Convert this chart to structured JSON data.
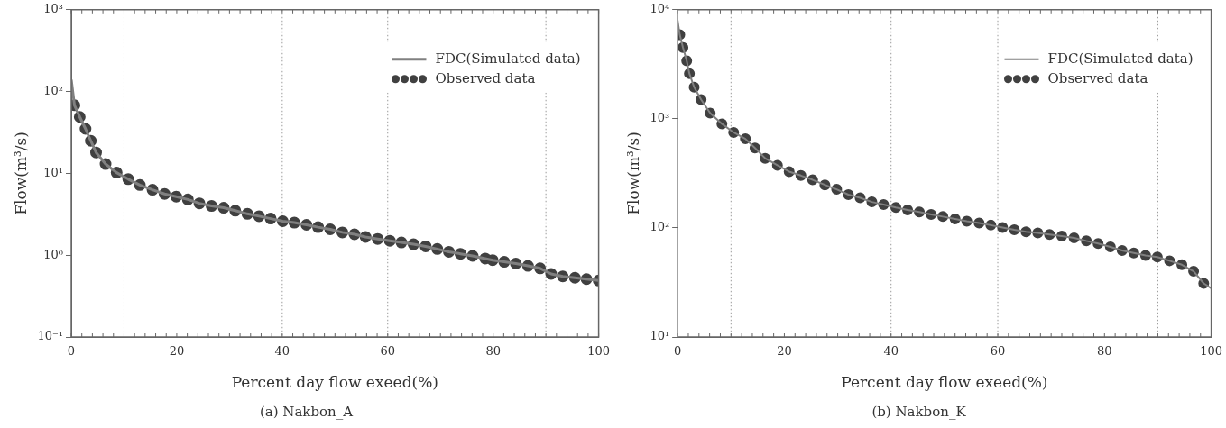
{
  "chart_data": [
    {
      "type": "line",
      "xlabel": "Percent day flow exeed(%)",
      "ylabel": "Flow(m³/s)",
      "annotations": [
        "(a) Nakbon_A"
      ],
      "xlim": [
        0,
        100
      ],
      "xticks": [
        0,
        20,
        40,
        60,
        80,
        100
      ],
      "ylim": [
        0.1,
        1000
      ],
      "yticks": [
        {
          "value": 0.1,
          "label": "10⁻¹"
        },
        {
          "value": 1,
          "label": "10⁰"
        },
        {
          "value": 10,
          "label": "10¹"
        },
        {
          "value": 100,
          "label": "10²"
        },
        {
          "value": 1000,
          "label": "10³"
        }
      ],
      "log": "y",
      "grid": false,
      "legend": "top right",
      "ref_lines": [
        {
          "axis": "x",
          "value": 10,
          "line_style": "dotted",
          "color": "#999999"
        },
        {
          "axis": "x",
          "value": 40,
          "line_style": "dotted",
          "color": "#999999"
        },
        {
          "axis": "x",
          "value": 60,
          "line_style": "dotted",
          "color": "#999999"
        },
        {
          "axis": "x",
          "value": 90,
          "line_style": "dotted",
          "color": "#999999"
        }
      ],
      "series": [
        {
          "name": "FDC(Simulated data)",
          "marker": "none",
          "line_style": "solid",
          "color": "#808080",
          "x": [
            0,
            0.6,
            1.6,
            2.7,
            3.7,
            4.7,
            6.5,
            8.6,
            10.8,
            13,
            15.4,
            17.7,
            19.9,
            22.1,
            24.3,
            26.6,
            28.9,
            31.1,
            33.4,
            35.6,
            37.8,
            40.1,
            42.3,
            44.6,
            46.8,
            49.1,
            51.4,
            53.7,
            55.8,
            58.1,
            60.4,
            62.6,
            64.9,
            67.2,
            69.4,
            71.6,
            73.8,
            76.1,
            78.5,
            79.9,
            82.1,
            84.3,
            86.6,
            88.9,
            91,
            93.2,
            95.5,
            97.7,
            100
          ],
          "values": [
            140,
            68,
            49,
            35,
            25,
            18,
            13,
            10.2,
            8.5,
            7.2,
            6.3,
            5.6,
            5.2,
            4.8,
            4.3,
            4.0,
            3.8,
            3.5,
            3.2,
            3.0,
            2.8,
            2.6,
            2.5,
            2.35,
            2.2,
            2.07,
            1.9,
            1.8,
            1.67,
            1.58,
            1.5,
            1.43,
            1.36,
            1.28,
            1.19,
            1.1,
            1.04,
            0.98,
            0.91,
            0.87,
            0.83,
            0.79,
            0.74,
            0.69,
            0.59,
            0.55,
            0.53,
            0.51,
            0.49
          ]
        },
        {
          "name": "Observed data",
          "type": "scatter",
          "marker": "circle",
          "color": "#404040",
          "x": [
            0.6,
            1.6,
            2.7,
            3.7,
            4.7,
            6.5,
            8.6,
            10.8,
            13,
            15.4,
            17.7,
            19.9,
            22.1,
            24.3,
            26.6,
            28.9,
            31.1,
            33.4,
            35.6,
            37.8,
            40.1,
            42.3,
            44.6,
            46.8,
            49.1,
            51.4,
            53.7,
            55.8,
            58.1,
            60.4,
            62.6,
            64.9,
            67.2,
            69.4,
            71.6,
            73.8,
            76.1,
            78.5,
            79.9,
            82.1,
            84.3,
            86.6,
            88.9,
            91,
            93.2,
            95.5,
            97.7,
            100
          ],
          "values": [
            68,
            49,
            35,
            25,
            18,
            13,
            10.2,
            8.5,
            7.2,
            6.3,
            5.6,
            5.2,
            4.8,
            4.3,
            4.0,
            3.8,
            3.5,
            3.2,
            3.0,
            2.8,
            2.6,
            2.5,
            2.35,
            2.2,
            2.07,
            1.9,
            1.8,
            1.67,
            1.58,
            1.5,
            1.43,
            1.36,
            1.28,
            1.19,
            1.1,
            1.04,
            0.98,
            0.91,
            0.87,
            0.83,
            0.79,
            0.74,
            0.69,
            0.59,
            0.55,
            0.53,
            0.51,
            0.49
          ]
        }
      ]
    },
    {
      "type": "line",
      "xlabel": "Percent day flow exeed(%)",
      "ylabel": "Flow(m³/s)",
      "annotations": [
        "(b) Nakbon_K"
      ],
      "xlim": [
        0,
        100
      ],
      "xticks": [
        0,
        20,
        40,
        60,
        80,
        100
      ],
      "ylim": [
        10,
        10000
      ],
      "yticks": [
        {
          "value": 10,
          "label": "10¹"
        },
        {
          "value": 100,
          "label": "10²"
        },
        {
          "value": 1000,
          "label": "10³"
        },
        {
          "value": 10000,
          "label": "10⁴"
        }
      ],
      "log": "y",
      "grid": false,
      "legend": "top right",
      "ref_lines": [
        {
          "axis": "x",
          "value": 10,
          "line_style": "dotted",
          "color": "#999999"
        },
        {
          "axis": "x",
          "value": 40,
          "line_style": "dotted",
          "color": "#999999"
        },
        {
          "axis": "x",
          "value": 60,
          "line_style": "dotted",
          "color": "#999999"
        },
        {
          "axis": "x",
          "value": 90,
          "line_style": "dotted",
          "color": "#999999"
        }
      ],
      "series": [
        {
          "name": "FDC(Simulated data)",
          "marker": "none",
          "line_style": "solid",
          "color": "#808080",
          "x": [
            0,
            0.4,
            1,
            1.7,
            2.2,
            3.1,
            4.4,
            6.1,
            8.3,
            10.5,
            12.7,
            14.5,
            16.4,
            18.7,
            20.9,
            23.1,
            25.3,
            27.6,
            29.8,
            32,
            34.2,
            36.4,
            38.6,
            40.9,
            43.1,
            45.3,
            47.5,
            49.7,
            52,
            54.2,
            56.5,
            58.7,
            60.9,
            63.1,
            65.3,
            67.5,
            69.7,
            72,
            74.3,
            76.6,
            78.8,
            81.1,
            83.3,
            85.5,
            87.7,
            89.9,
            92.2,
            94.5,
            96.7,
            98.6,
            100
          ],
          "values": [
            8000,
            5900,
            4500,
            3400,
            2600,
            1950,
            1500,
            1130,
            900,
            750,
            655,
            540,
            435,
            375,
            328,
            302,
            276,
            248,
            226,
            202,
            189,
            173,
            164,
            154,
            146,
            140,
            133,
            127,
            121,
            115,
            111,
            106,
            101,
            96,
            92,
            90,
            87,
            84,
            81,
            76,
            72,
            67,
            62,
            59,
            56,
            54,
            50,
            46,
            40,
            31,
            28
          ]
        },
        {
          "name": "Observed data",
          "type": "scatter",
          "marker": "circle",
          "color": "#404040",
          "x": [
            0.4,
            1,
            1.7,
            2.2,
            3.1,
            4.4,
            6.1,
            8.3,
            10.5,
            12.7,
            14.5,
            16.4,
            18.7,
            20.9,
            23.1,
            25.3,
            27.6,
            29.8,
            32,
            34.2,
            36.4,
            38.6,
            40.9,
            43.1,
            45.3,
            47.5,
            49.7,
            52,
            54.2,
            56.5,
            58.7,
            60.9,
            63.1,
            65.3,
            67.5,
            69.7,
            72,
            74.3,
            76.6,
            78.8,
            81.1,
            83.3,
            85.5,
            87.7,
            89.9,
            92.2,
            94.5,
            96.7,
            98.6
          ],
          "values": [
            5900,
            4500,
            3400,
            2600,
            1950,
            1500,
            1130,
            900,
            750,
            655,
            540,
            435,
            375,
            328,
            302,
            276,
            248,
            226,
            202,
            189,
            173,
            164,
            154,
            146,
            140,
            133,
            127,
            121,
            115,
            111,
            106,
            101,
            96,
            92,
            90,
            87,
            84,
            81,
            76,
            72,
            67,
            62,
            59,
            56,
            54,
            50,
            46,
            40,
            31
          ]
        }
      ]
    }
  ]
}
